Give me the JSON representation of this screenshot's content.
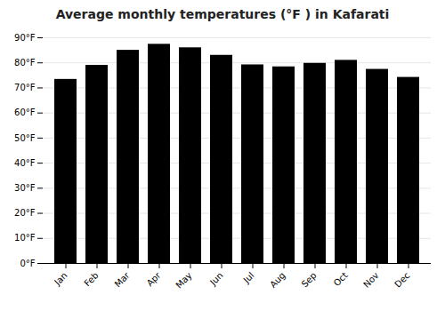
{
  "chart_data": {
    "type": "bar",
    "title": "Average monthly temperatures (°F ) in Kafarati",
    "categories": [
      "Jan",
      "Feb",
      "Mar",
      "Apr",
      "May",
      "Jun",
      "Jul",
      "Aug",
      "Sep",
      "Oct",
      "Nov",
      "Dec"
    ],
    "values": [
      73.4,
      79.0,
      85.0,
      87.4,
      86.0,
      83.0,
      79.2,
      78.4,
      79.8,
      81.0,
      77.4,
      74.2
    ],
    "ylim": [
      0,
      90
    ],
    "yticks": [
      {
        "value": 0,
        "label": "0°F"
      },
      {
        "value": 10,
        "label": "10°F"
      },
      {
        "value": 20,
        "label": "20°F"
      },
      {
        "value": 30,
        "label": "30°F"
      },
      {
        "value": 40,
        "label": "40°F"
      },
      {
        "value": 50,
        "label": "50°F"
      },
      {
        "value": 60,
        "label": "60°F"
      },
      {
        "value": 70,
        "label": "70°F"
      },
      {
        "value": 80,
        "label": "80°F"
      },
      {
        "value": 90,
        "label": "90°F"
      }
    ],
    "grid": true
  }
}
